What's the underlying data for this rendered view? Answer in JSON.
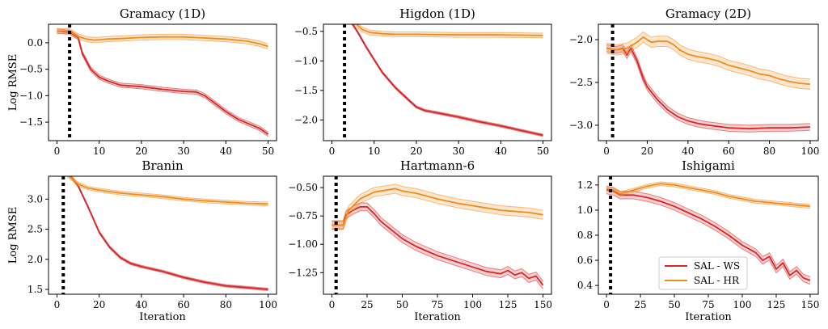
{
  "chart_data": [
    {
      "type": "line",
      "title": "Gramacy (1D)",
      "xlabel": "",
      "ylabel": "Log RMSE",
      "xlim": [
        -2,
        52
      ],
      "ylim": [
        -1.85,
        0.35
      ],
      "xticks": [
        0,
        10,
        20,
        30,
        40,
        50
      ],
      "yticks": [
        0.0,
        -0.5,
        -1.0,
        -1.5
      ],
      "ytick_labels": [
        "0.0",
        "−0.5",
        "−1.0",
        "−1.5"
      ],
      "vline_x": 3,
      "series": [
        {
          "name": "SAL - WS",
          "band": 0.04,
          "points": [
            [
              0,
              0.22
            ],
            [
              3,
              0.2
            ],
            [
              5,
              0.1
            ],
            [
              6,
              -0.2
            ],
            [
              8,
              -0.5
            ],
            [
              10,
              -0.65
            ],
            [
              12,
              -0.72
            ],
            [
              15,
              -0.8
            ],
            [
              20,
              -0.83
            ],
            [
              25,
              -0.88
            ],
            [
              30,
              -0.92
            ],
            [
              33,
              -0.93
            ],
            [
              35,
              -1.0
            ],
            [
              38,
              -1.18
            ],
            [
              40,
              -1.3
            ],
            [
              43,
              -1.45
            ],
            [
              46,
              -1.55
            ],
            [
              48,
              -1.62
            ],
            [
              50,
              -1.73
            ]
          ]
        },
        {
          "name": "SAL - HR",
          "band": 0.05,
          "points": [
            [
              0,
              0.22
            ],
            [
              3,
              0.22
            ],
            [
              5,
              0.12
            ],
            [
              7,
              0.07
            ],
            [
              9,
              0.05
            ],
            [
              12,
              0.07
            ],
            [
              15,
              0.08
            ],
            [
              20,
              0.1
            ],
            [
              25,
              0.11
            ],
            [
              30,
              0.11
            ],
            [
              35,
              0.09
            ],
            [
              40,
              0.07
            ],
            [
              45,
              0.03
            ],
            [
              48,
              -0.02
            ],
            [
              50,
              -0.07
            ]
          ]
        }
      ]
    },
    {
      "type": "line",
      "title": "Higdon (1D)",
      "xlabel": "",
      "ylabel": "",
      "xlim": [
        -2,
        52
      ],
      "ylim": [
        -2.35,
        -0.38
      ],
      "xticks": [
        0,
        10,
        20,
        30,
        40,
        50
      ],
      "yticks": [
        -0.5,
        -1.0,
        -1.5,
        -2.0
      ],
      "ytick_labels": [
        "−0.5",
        "−1.0",
        "−1.5",
        "−2.0"
      ],
      "vline_x": 3,
      "series": [
        {
          "name": "SAL - WS",
          "band": 0.02,
          "points": [
            [
              0,
              -0.18
            ],
            [
              4,
              -0.28
            ],
            [
              6,
              -0.5
            ],
            [
              8,
              -0.75
            ],
            [
              10,
              -0.98
            ],
            [
              12,
              -1.2
            ],
            [
              15,
              -1.45
            ],
            [
              18,
              -1.65
            ],
            [
              20,
              -1.78
            ],
            [
              22,
              -1.84
            ],
            [
              25,
              -1.88
            ],
            [
              30,
              -1.95
            ],
            [
              35,
              -2.03
            ],
            [
              40,
              -2.1
            ],
            [
              45,
              -2.18
            ],
            [
              50,
              -2.26
            ]
          ]
        },
        {
          "name": "SAL - HR",
          "band": 0.04,
          "points": [
            [
              0,
              -0.2
            ],
            [
              5,
              -0.32
            ],
            [
              7,
              -0.46
            ],
            [
              9,
              -0.52
            ],
            [
              12,
              -0.54
            ],
            [
              15,
              -0.55
            ],
            [
              20,
              -0.55
            ],
            [
              30,
              -0.56
            ],
            [
              40,
              -0.56
            ],
            [
              50,
              -0.57
            ]
          ]
        }
      ]
    },
    {
      "type": "line",
      "title": "Gramacy (2D)",
      "xlabel": "",
      "ylabel": "",
      "xlim": [
        -4,
        104
      ],
      "ylim": [
        -3.18,
        -1.82
      ],
      "xticks": [
        0,
        20,
        40,
        60,
        80,
        100
      ],
      "yticks": [
        -2.0,
        -2.5,
        -3.0
      ],
      "ytick_labels": [
        "−2.0",
        "−2.5",
        "−3.0"
      ],
      "vline_x": 3,
      "series": [
        {
          "name": "SAL - WS",
          "band": 0.04,
          "points": [
            [
              0,
              -2.1
            ],
            [
              5,
              -2.12
            ],
            [
              8,
              -2.1
            ],
            [
              10,
              -2.18
            ],
            [
              12,
              -2.1
            ],
            [
              15,
              -2.25
            ],
            [
              18,
              -2.45
            ],
            [
              20,
              -2.55
            ],
            [
              25,
              -2.7
            ],
            [
              30,
              -2.82
            ],
            [
              35,
              -2.9
            ],
            [
              40,
              -2.95
            ],
            [
              45,
              -2.98
            ],
            [
              50,
              -3.0
            ],
            [
              60,
              -3.03
            ],
            [
              70,
              -3.04
            ],
            [
              80,
              -3.03
            ],
            [
              90,
              -3.03
            ],
            [
              100,
              -3.02
            ]
          ]
        },
        {
          "name": "SAL - HR",
          "band": 0.06,
          "points": [
            [
              0,
              -2.1
            ],
            [
              5,
              -2.12
            ],
            [
              10,
              -2.1
            ],
            [
              15,
              -2.03
            ],
            [
              18,
              -1.97
            ],
            [
              20,
              -2.0
            ],
            [
              22,
              -2.03
            ],
            [
              25,
              -2.02
            ],
            [
              30,
              -2.02
            ],
            [
              33,
              -2.06
            ],
            [
              36,
              -2.12
            ],
            [
              40,
              -2.17
            ],
            [
              45,
              -2.2
            ],
            [
              50,
              -2.22
            ],
            [
              55,
              -2.25
            ],
            [
              60,
              -2.3
            ],
            [
              65,
              -2.33
            ],
            [
              70,
              -2.36
            ],
            [
              75,
              -2.4
            ],
            [
              80,
              -2.42
            ],
            [
              85,
              -2.46
            ],
            [
              90,
              -2.49
            ],
            [
              95,
              -2.51
            ],
            [
              100,
              -2.52
            ]
          ]
        }
      ]
    },
    {
      "type": "line",
      "title": "Branin",
      "xlabel": "Iteration",
      "ylabel": "Log RMSE",
      "xlim": [
        -4,
        104
      ],
      "ylim": [
        1.42,
        3.38
      ],
      "xticks": [
        0,
        20,
        40,
        60,
        80,
        100
      ],
      "yticks": [
        1.5,
        2.0,
        2.5,
        3.0
      ],
      "ytick_labels": [
        "1.5",
        "2.0",
        "2.5",
        "3.0"
      ],
      "vline_x": 3,
      "series": [
        {
          "name": "SAL - WS",
          "band": 0.02,
          "points": [
            [
              0,
              3.6
            ],
            [
              5,
              3.45
            ],
            [
              10,
              3.22
            ],
            [
              15,
              2.85
            ],
            [
              20,
              2.45
            ],
            [
              25,
              2.2
            ],
            [
              30,
              2.03
            ],
            [
              35,
              1.93
            ],
            [
              40,
              1.88
            ],
            [
              50,
              1.8
            ],
            [
              60,
              1.7
            ],
            [
              70,
              1.62
            ],
            [
              80,
              1.56
            ],
            [
              90,
              1.53
            ],
            [
              100,
              1.5
            ]
          ]
        },
        {
          "name": "SAL - HR",
          "band": 0.03,
          "points": [
            [
              0,
              3.55
            ],
            [
              5,
              3.4
            ],
            [
              10,
              3.25
            ],
            [
              15,
              3.18
            ],
            [
              20,
              3.15
            ],
            [
              30,
              3.1
            ],
            [
              40,
              3.07
            ],
            [
              50,
              3.04
            ],
            [
              60,
              3.0
            ],
            [
              70,
              2.97
            ],
            [
              80,
              2.95
            ],
            [
              90,
              2.93
            ],
            [
              100,
              2.92
            ]
          ]
        }
      ]
    },
    {
      "type": "line",
      "title": "Hartmann-6",
      "xlabel": "Iteration",
      "ylabel": "",
      "xlim": [
        -6,
        156
      ],
      "ylim": [
        -1.44,
        -0.4
      ],
      "xticks": [
        0,
        25,
        50,
        75,
        100,
        125,
        150
      ],
      "yticks": [
        -0.5,
        -0.75,
        -1.0,
        -1.25
      ],
      "ytick_labels": [
        "−0.50",
        "−0.75",
        "−1.00",
        "−1.25"
      ],
      "vline_x": 3,
      "series": [
        {
          "name": "SAL - WS",
          "band": 0.035,
          "points": [
            [
              0,
              -0.83
            ],
            [
              8,
              -0.83
            ],
            [
              10,
              -0.74
            ],
            [
              15,
              -0.7
            ],
            [
              20,
              -0.67
            ],
            [
              25,
              -0.67
            ],
            [
              30,
              -0.73
            ],
            [
              35,
              -0.8
            ],
            [
              40,
              -0.85
            ],
            [
              50,
              -0.95
            ],
            [
              60,
              -1.02
            ],
            [
              75,
              -1.1
            ],
            [
              90,
              -1.16
            ],
            [
              100,
              -1.2
            ],
            [
              110,
              -1.24
            ],
            [
              120,
              -1.26
            ],
            [
              125,
              -1.23
            ],
            [
              130,
              -1.27
            ],
            [
              135,
              -1.25
            ],
            [
              140,
              -1.3
            ],
            [
              145,
              -1.28
            ],
            [
              150,
              -1.36
            ]
          ]
        },
        {
          "name": "SAL - HR",
          "band": 0.04,
          "points": [
            [
              0,
              -0.83
            ],
            [
              8,
              -0.83
            ],
            [
              12,
              -0.7
            ],
            [
              20,
              -0.6
            ],
            [
              30,
              -0.54
            ],
            [
              40,
              -0.52
            ],
            [
              45,
              -0.51
            ],
            [
              50,
              -0.53
            ],
            [
              60,
              -0.55
            ],
            [
              75,
              -0.6
            ],
            [
              90,
              -0.64
            ],
            [
              100,
              -0.66
            ],
            [
              110,
              -0.68
            ],
            [
              120,
              -0.7
            ],
            [
              130,
              -0.71
            ],
            [
              140,
              -0.72
            ],
            [
              150,
              -0.74
            ]
          ]
        }
      ]
    },
    {
      "type": "line",
      "title": "Ishigami",
      "xlabel": "Iteration",
      "ylabel": "",
      "xlim": [
        -6,
        156
      ],
      "ylim": [
        0.33,
        1.27
      ],
      "xticks": [
        0,
        25,
        50,
        75,
        100,
        125,
        150
      ],
      "yticks": [
        0.4,
        0.6,
        0.8,
        1.0,
        1.2
      ],
      "ytick_labels": [
        "0.4",
        "0.6",
        "0.8",
        "1.0",
        "1.2"
      ],
      "vline_x": 3,
      "series": [
        {
          "name": "SAL - WS",
          "band": 0.03,
          "points": [
            [
              0,
              1.16
            ],
            [
              5,
              1.15
            ],
            [
              10,
              1.12
            ],
            [
              20,
              1.12
            ],
            [
              30,
              1.1
            ],
            [
              40,
              1.07
            ],
            [
              50,
              1.03
            ],
            [
              60,
              0.98
            ],
            [
              70,
              0.93
            ],
            [
              80,
              0.87
            ],
            [
              90,
              0.8
            ],
            [
              100,
              0.72
            ],
            [
              110,
              0.66
            ],
            [
              115,
              0.6
            ],
            [
              120,
              0.63
            ],
            [
              125,
              0.53
            ],
            [
              130,
              0.58
            ],
            [
              135,
              0.48
            ],
            [
              140,
              0.52
            ],
            [
              145,
              0.46
            ],
            [
              150,
              0.44
            ]
          ]
        },
        {
          "name": "SAL - HR",
          "band": 0.015,
          "points": [
            [
              0,
              1.17
            ],
            [
              5,
              1.16
            ],
            [
              10,
              1.13
            ],
            [
              20,
              1.16
            ],
            [
              30,
              1.19
            ],
            [
              40,
              1.21
            ],
            [
              50,
              1.2
            ],
            [
              60,
              1.18
            ],
            [
              70,
              1.16
            ],
            [
              80,
              1.14
            ],
            [
              90,
              1.11
            ],
            [
              100,
              1.09
            ],
            [
              110,
              1.07
            ],
            [
              120,
              1.06
            ],
            [
              130,
              1.05
            ],
            [
              140,
              1.04
            ],
            [
              150,
              1.03
            ]
          ]
        }
      ]
    }
  ],
  "legend": {
    "placement": "lower-right of Ishigami panel",
    "items": [
      {
        "label": "SAL - WS",
        "color": "#d62728"
      },
      {
        "label": "SAL - HR",
        "color": "#f08c1e"
      }
    ]
  },
  "colors": {
    "SAL - WS": "#d62728",
    "SAL - HR": "#f08c1e",
    "vline": "#000000"
  }
}
